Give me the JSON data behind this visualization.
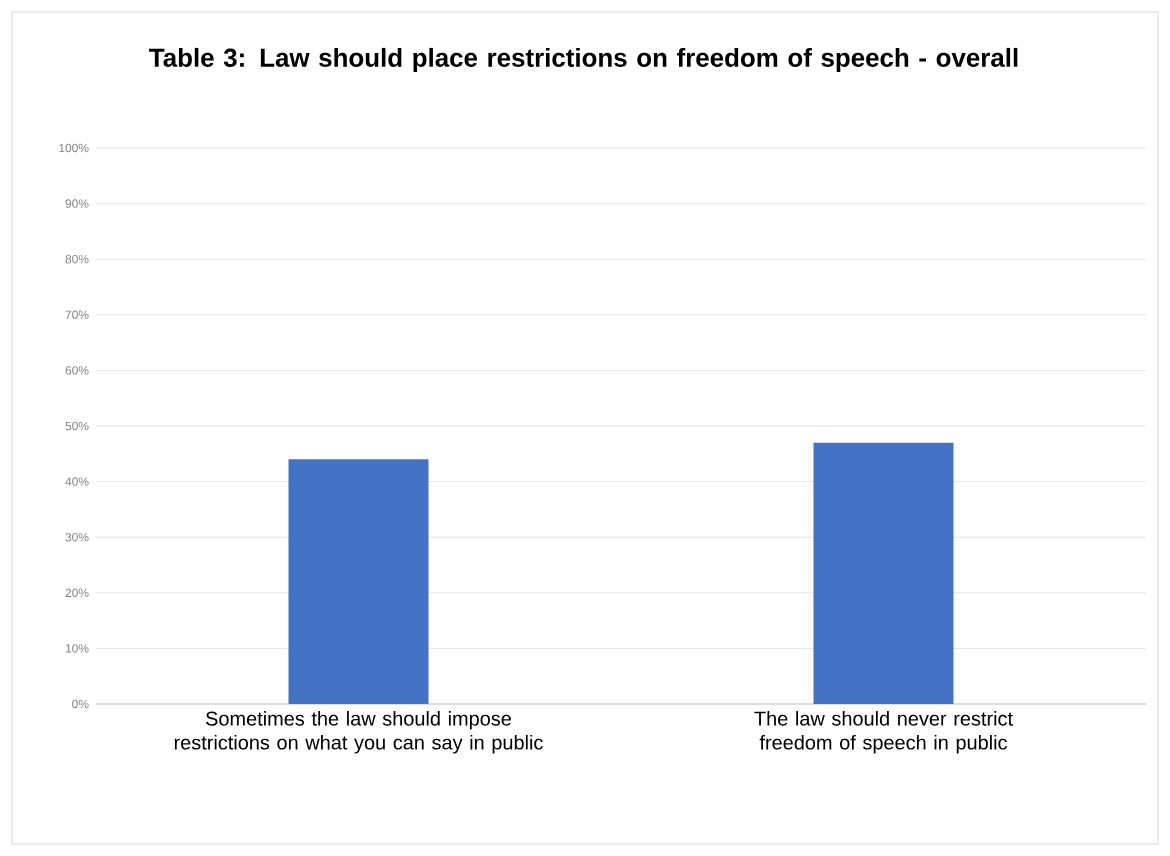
{
  "chart_data": {
    "type": "bar",
    "title": "Table 3: Law should place restrictions on freedom of speech - overall",
    "categories": [
      "Sometimes the law should impose restrictions on what you can say in public",
      "The law should never restrict freedom of speech in public"
    ],
    "values": [
      44,
      47
    ],
    "color": "#4472c4",
    "ylim": [
      0,
      100
    ],
    "yticks": [
      {
        "value": 0,
        "label": "0%"
      },
      {
        "value": 10,
        "label": "10%"
      },
      {
        "value": 20,
        "label": "20%"
      },
      {
        "value": 30,
        "label": "30%"
      },
      {
        "value": 40,
        "label": "40%"
      },
      {
        "value": 50,
        "label": "50%"
      },
      {
        "value": 60,
        "label": "60%"
      },
      {
        "value": 70,
        "label": "70%"
      },
      {
        "value": 80,
        "label": "80%"
      },
      {
        "value": 90,
        "label": "90%"
      },
      {
        "value": 100,
        "label": "100%"
      }
    ],
    "grid": "y"
  }
}
